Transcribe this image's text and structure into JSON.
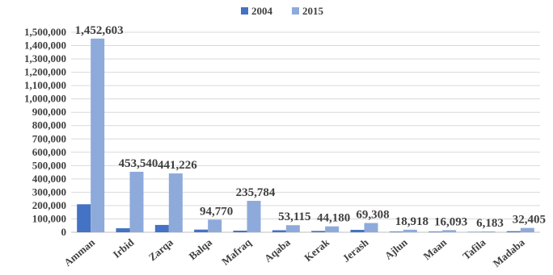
{
  "chart_data": {
    "type": "bar",
    "title": "",
    "xlabel": "",
    "ylabel": "",
    "categories": [
      "Amman",
      "Irbid",
      "Zarqa",
      "Balqa",
      "Mafraq",
      "Aqaba",
      "Kerak",
      "Jerash",
      "Ajlun",
      "Maan",
      "Tafila",
      "Madaba"
    ],
    "series": [
      {
        "name": "2004",
        "color": "#4472c4",
        "values": [
          210000,
          30000,
          55000,
          20000,
          12000,
          15000,
          10000,
          18000,
          5000,
          5000,
          3000,
          8000
        ]
      },
      {
        "name": "2015",
        "color": "#8eaadb",
        "values": [
          1452603,
          453540,
          441226,
          94770,
          235784,
          53115,
          44180,
          69308,
          18918,
          16093,
          6183,
          32405
        ]
      }
    ],
    "data_labels": [
      "1,452,603",
      "453,540",
      "441,226",
      "94,770",
      "235,784",
      "53,115",
      "44,180",
      "69,308",
      "18,918",
      "16,093",
      "6,183",
      "32,405"
    ],
    "ylim": [
      0,
      1500000
    ],
    "y_ticks": [
      "0",
      "100,000",
      "200,000",
      "300,000",
      "400,000",
      "500,000",
      "600,000",
      "700,000",
      "800,000",
      "900,000",
      "1,000,000",
      "1,100,000",
      "1,200,000",
      "1,300,000",
      "1,400,000",
      "1,500,000"
    ],
    "grid": true,
    "legend_position": "top-center"
  }
}
